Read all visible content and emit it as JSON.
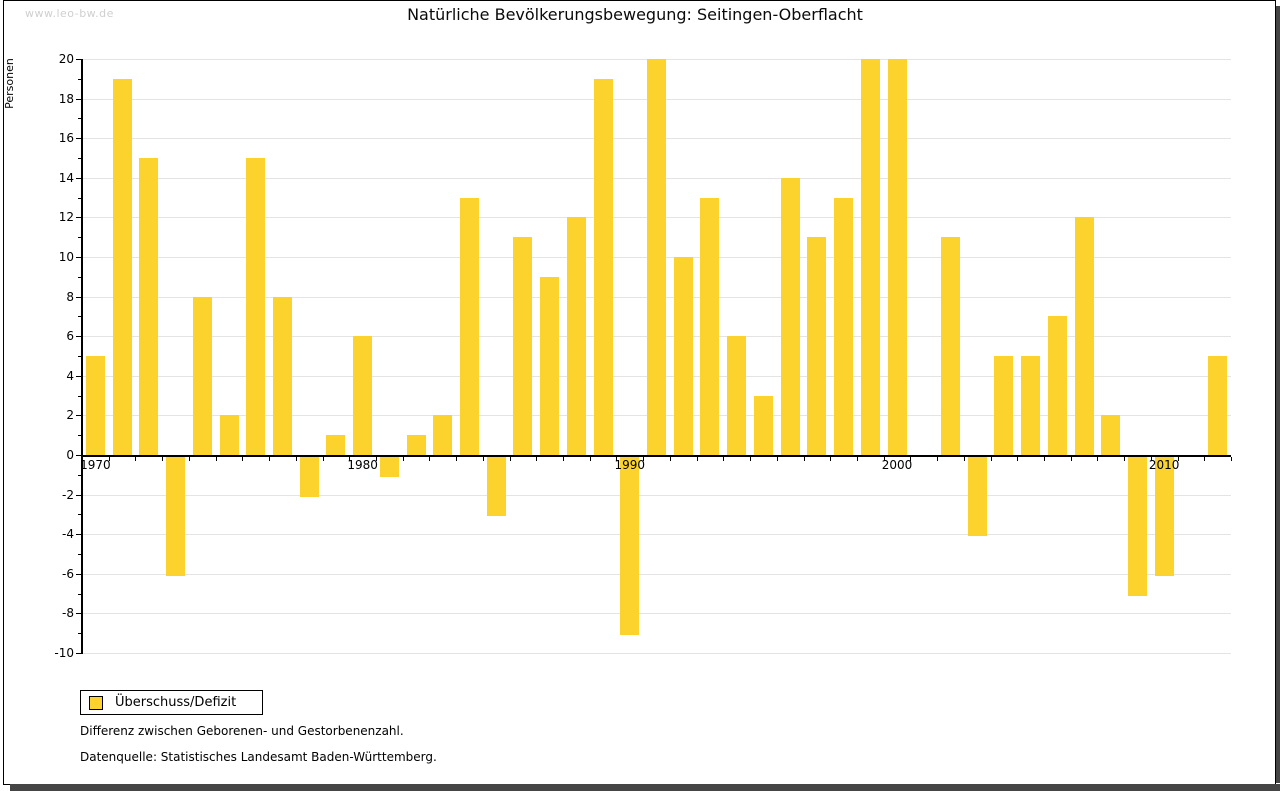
{
  "watermark": "www.leo-bw.de",
  "title": "Natürliche Bevölkerungsbewegung: Seitingen-Oberflacht",
  "legend": {
    "label": "Überschuss/Defizit"
  },
  "footnotes": {
    "line1": "Differenz zwischen Geborenen- und Gestorbenenzahl.",
    "line2": "Datenquelle: Statistisches Landesamt Baden-Württemberg."
  },
  "colors": {
    "bar": "#FCD32D",
    "grid": "#e4e4e4",
    "axis": "#000000",
    "watermark": "#cfcfcf",
    "shadow": "#454545"
  },
  "chart_data": {
    "type": "bar",
    "title": "Natürliche Bevölkerungsbewegung: Seitingen-Oberflacht",
    "xlabel": "",
    "ylabel": "Personen",
    "x": [
      1970,
      1971,
      1972,
      1973,
      1974,
      1975,
      1976,
      1977,
      1978,
      1979,
      1980,
      1981,
      1982,
      1983,
      1984,
      1985,
      1986,
      1987,
      1988,
      1989,
      1990,
      1991,
      1992,
      1993,
      1994,
      1995,
      1996,
      1997,
      1998,
      1999,
      2000,
      2001,
      2002,
      2003,
      2004,
      2005,
      2006,
      2007,
      2008,
      2009,
      2010,
      2011,
      2012
    ],
    "series": [
      {
        "name": "Überschuss/Defizit",
        "values": [
          5,
          19,
          15,
          -6,
          8,
          2,
          15,
          8,
          -2,
          1,
          6,
          -1,
          1,
          2,
          13,
          -3,
          11,
          9,
          12,
          19,
          -9,
          20,
          10,
          13,
          6,
          3,
          14,
          11,
          13,
          20,
          20,
          0,
          11,
          -4,
          5,
          5,
          7,
          12,
          2,
          -7,
          -6,
          0,
          5
        ]
      }
    ],
    "ylim": [
      -10,
      20
    ],
    "ytick_step": 2,
    "y_minor_tick_step": 1,
    "xticks": [
      1970,
      1980,
      1990,
      2000,
      2010
    ],
    "grid": true,
    "legend_position": "bottom-left"
  }
}
